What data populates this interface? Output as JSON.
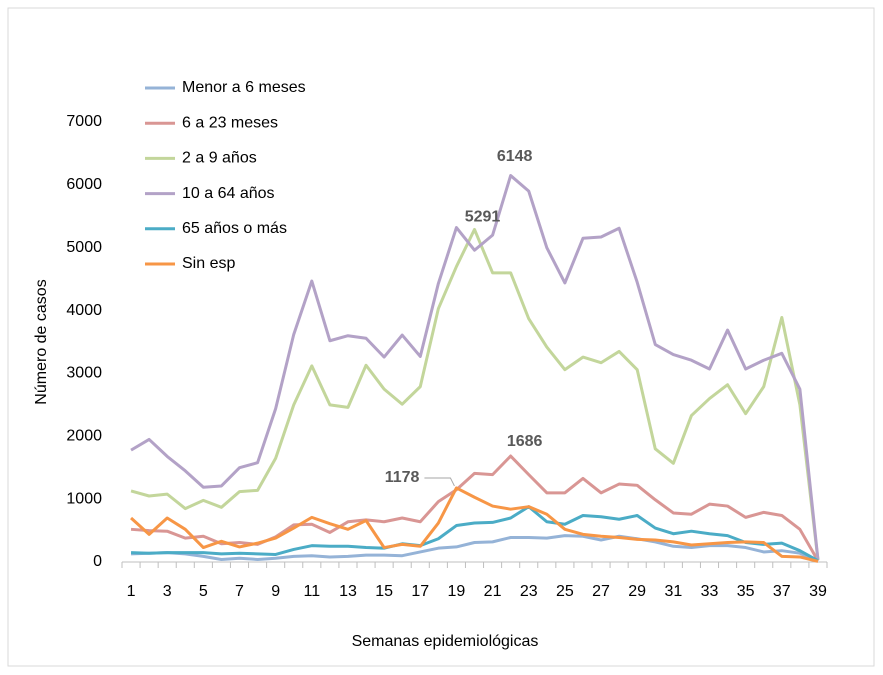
{
  "chart_data": {
    "type": "line",
    "y_label": "Número de casos",
    "x_label": "Semanas epidemiológicas",
    "categories": [
      "1",
      null,
      "3",
      null,
      "5",
      null,
      "7",
      null,
      "9",
      null,
      "11",
      null,
      "13",
      null,
      "15",
      null,
      "17",
      null,
      "19",
      null,
      "21",
      null,
      "23",
      null,
      "25",
      null,
      "27",
      null,
      "29",
      null,
      "31",
      null,
      "33",
      null,
      "35",
      null,
      "37",
      null,
      "39"
    ],
    "ylim": [
      0,
      7000
    ],
    "yticks": [
      0,
      1000,
      2000,
      3000,
      4000,
      5000,
      6000,
      7000
    ],
    "grid": false,
    "legend": "top-left",
    "series": [
      {
        "name": "Menor a 6 meses",
        "color": "#95b3d7",
        "values": [
          130,
          140,
          150,
          130,
          90,
          40,
          60,
          40,
          60,
          90,
          100,
          80,
          90,
          110,
          110,
          100,
          160,
          220,
          240,
          310,
          320,
          390,
          390,
          380,
          420,
          410,
          350,
          410,
          370,
          320,
          250,
          230,
          260,
          260,
          230,
          160,
          180,
          140,
          10
        ]
      },
      {
        "name": "6 a 23 meses",
        "color": "#d99694",
        "values": [
          520,
          500,
          490,
          380,
          410,
          290,
          310,
          280,
          400,
          590,
          600,
          470,
          640,
          670,
          640,
          700,
          640,
          960,
          1150,
          1410,
          1390,
          1686,
          1390,
          1100,
          1100,
          1330,
          1100,
          1240,
          1220,
          990,
          780,
          760,
          920,
          890,
          710,
          790,
          740,
          520,
          20
        ]
      },
      {
        "name": "2 a 9 años",
        "color": "#c3d69b",
        "values": [
          1130,
          1050,
          1080,
          850,
          980,
          870,
          1120,
          1140,
          1650,
          2500,
          3120,
          2500,
          2460,
          3130,
          2750,
          2510,
          2790,
          4030,
          4700,
          5291,
          4600,
          4600,
          3870,
          3420,
          3060,
          3260,
          3170,
          3350,
          3060,
          1800,
          1570,
          2330,
          2600,
          2820,
          2360,
          2790,
          3890,
          2500,
          30
        ]
      },
      {
        "name": "10 a 64 años",
        "color": "#b3a2c7",
        "values": [
          1780,
          1950,
          1680,
          1450,
          1190,
          1210,
          1500,
          1580,
          2440,
          3620,
          4470,
          3520,
          3600,
          3560,
          3260,
          3610,
          3270,
          4430,
          5320,
          4960,
          5200,
          6148,
          5900,
          5000,
          4440,
          5150,
          5170,
          5310,
          4450,
          3460,
          3300,
          3210,
          3070,
          3690,
          3070,
          3210,
          3320,
          2750,
          40
        ]
      },
      {
        "name": "65 años o más",
        "color": "#4bacc6",
        "values": [
          150,
          140,
          150,
          150,
          150,
          130,
          140,
          130,
          120,
          200,
          260,
          250,
          250,
          230,
          220,
          290,
          260,
          370,
          580,
          620,
          630,
          700,
          880,
          640,
          600,
          740,
          720,
          680,
          740,
          540,
          450,
          490,
          450,
          420,
          310,
          280,
          300,
          180,
          20
        ]
      },
      {
        "name": "Sin esp",
        "color": "#f79646",
        "values": [
          700,
          440,
          700,
          520,
          230,
          330,
          240,
          300,
          380,
          540,
          710,
          610,
          520,
          660,
          230,
          280,
          250,
          620,
          1178,
          1030,
          890,
          840,
          880,
          760,
          520,
          440,
          410,
          390,
          360,
          350,
          320,
          270,
          290,
          310,
          320,
          310,
          90,
          80,
          10
        ]
      }
    ]
  }
}
